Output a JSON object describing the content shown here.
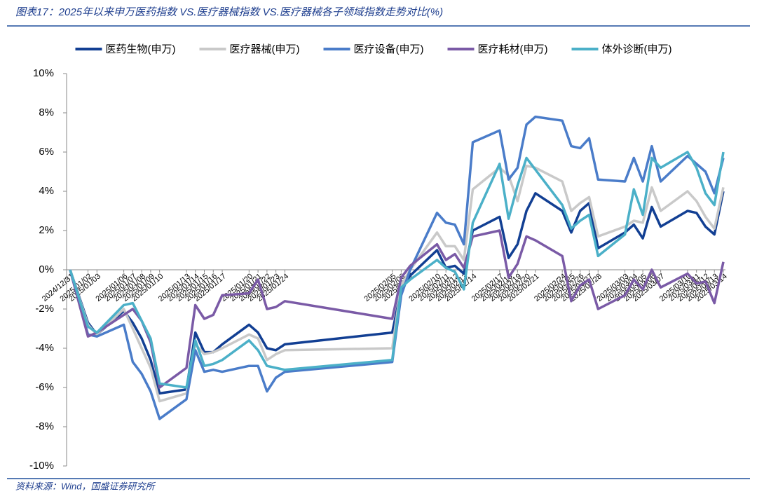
{
  "chart_data": {
    "type": "line",
    "title": "图表17：2025年以来申万医药指数 VS.医疗器械指数 VS.医疗器械各子领域指数走势对比(%)",
    "source": "资料来源：Wind，国盛证券研究所",
    "x": [
      "2024/12/31",
      "2025/01/02",
      "2025/01/03",
      "2025/01/06",
      "2025/01/07",
      "2025/01/08",
      "2025/01/09",
      "2025/01/10",
      "2025/01/13",
      "2025/01/14",
      "2025/01/15",
      "2025/01/16",
      "2025/01/17",
      "2025/01/20",
      "2025/01/21",
      "2025/01/22",
      "2025/01/23",
      "2025/01/24",
      "2025/02/05",
      "2025/02/06",
      "2025/02/07",
      "2025/02/10",
      "2025/02/11",
      "2025/02/12",
      "2025/02/13",
      "2025/02/14",
      "2025/02/17",
      "2025/02/18",
      "2025/02/19",
      "2025/02/20",
      "2025/02/21",
      "2025/02/24",
      "2025/02/25",
      "2025/02/26",
      "2025/02/27",
      "2025/02/28",
      "2025/03/03",
      "2025/03/04",
      "2025/03/05",
      "2025/03/06",
      "2025/03/07",
      "2025/03/10",
      "2025/03/11",
      "2025/03/12",
      "2025/03/13",
      "2025/03/14"
    ],
    "xlim": [
      "2024/12/31",
      "2025/03/14"
    ],
    "series": [
      {
        "name": "医药生物(申万)",
        "color": "#123f93",
        "values": [
          0,
          -2.7,
          -3.3,
          -2.1,
          -2.7,
          -3.5,
          -4.6,
          -6.3,
          -6.1,
          -3.2,
          -4.2,
          -4.2,
          -3.8,
          -2.8,
          -3.2,
          -4.0,
          -4.1,
          -3.8,
          -3.2,
          -1.0,
          -0.3,
          1.0,
          0.1,
          0.2,
          -0.2,
          2.0,
          2.7,
          0.6,
          1.3,
          3.0,
          3.9,
          3.0,
          1.9,
          3.0,
          3.4,
          1.1,
          1.9,
          2.3,
          1.6,
          3.2,
          2.2,
          3.0,
          2.9,
          2.2,
          1.8,
          4.0
        ]
      },
      {
        "name": "医疗器械(申万)",
        "color": "#c9c9c9",
        "values": [
          0,
          -2.8,
          -3.3,
          -2.0,
          -3.0,
          -4.0,
          -5.0,
          -6.7,
          -6.3,
          -3.8,
          -4.3,
          -4.2,
          -4.0,
          -3.3,
          -3.5,
          -4.6,
          -4.3,
          -4.1,
          -4.0,
          -0.8,
          0,
          1.9,
          1.2,
          1.2,
          0.5,
          4.1,
          5.2,
          4.8,
          3.5,
          5.3,
          5.2,
          4.5,
          3.0,
          3.4,
          3.7,
          1.7,
          2.2,
          2.5,
          2.4,
          4.2,
          3.0,
          4.0,
          3.5,
          2.7,
          2.1,
          4.2
        ]
      },
      {
        "name": "医疗设备(申万)",
        "color": "#4a7cc9",
        "values": [
          0,
          -3.3,
          -3.4,
          -2.8,
          -4.7,
          -5.3,
          -6.2,
          -7.6,
          -6.6,
          -4.1,
          -5.2,
          -5.1,
          -5.2,
          -4.9,
          -4.9,
          -6.2,
          -5.5,
          -5.2,
          -4.7,
          -1.3,
          0,
          2.9,
          2.4,
          2.3,
          1.3,
          6.5,
          7.1,
          4.6,
          5.2,
          7.4,
          7.8,
          7.6,
          6.3,
          6.2,
          6.7,
          4.6,
          4.5,
          5.7,
          4.5,
          6.3,
          4.5,
          5.8,
          5.4,
          5.0,
          3.9,
          5.7
        ]
      },
      {
        "name": "医疗耗材(申万)",
        "color": "#7a5aa6",
        "values": [
          0,
          -3.4,
          -3.2,
          -2.3,
          -2.0,
          -2.6,
          -3.7,
          -6.0,
          -5.0,
          -1.8,
          -2.5,
          -2.3,
          -1.3,
          -1.2,
          -0.5,
          -2.0,
          -1.9,
          -1.6,
          -2.5,
          -0.4,
          0.2,
          1.3,
          0.5,
          0.8,
          0.1,
          1.7,
          2.0,
          -0.4,
          0.3,
          1.7,
          1.5,
          0.7,
          -1.6,
          -0.8,
          -0.5,
          -2.0,
          -1.3,
          -0.5,
          -1.0,
          0,
          -0.9,
          -0.2,
          -0.7,
          -0.6,
          -1.7,
          0.4
        ]
      },
      {
        "name": "体外诊断(申万)",
        "color": "#4bb0c8",
        "values": [
          0,
          -2.9,
          -3.2,
          -1.8,
          -1.7,
          -2.6,
          -3.5,
          -5.8,
          -6.0,
          -3.6,
          -4.9,
          -4.8,
          -4.6,
          -3.6,
          -4.1,
          -4.9,
          -5.0,
          -5.1,
          -4.6,
          -0.9,
          -0.5,
          0.5,
          0.1,
          -0.1,
          -1.0,
          2.4,
          5.4,
          2.6,
          4.3,
          5.7,
          5.1,
          3.3,
          2.1,
          2.5,
          2.8,
          0.7,
          1.8,
          4.1,
          2.8,
          5.7,
          5.2,
          6.0,
          5.2,
          3.9,
          3.3,
          6.0
        ]
      }
    ],
    "ylim": [
      -10,
      10
    ],
    "yticks": [
      {
        "value": -10,
        "label": "-10%"
      },
      {
        "value": -8,
        "label": "-8%"
      },
      {
        "value": -6,
        "label": "-6%"
      },
      {
        "value": -4,
        "label": "-4%"
      },
      {
        "value": -2,
        "label": "-2%"
      },
      {
        "value": 0,
        "label": "0%"
      },
      {
        "value": 2,
        "label": "2%"
      },
      {
        "value": 4,
        "label": "4%"
      },
      {
        "value": 6,
        "label": "6%"
      },
      {
        "value": 8,
        "label": "8%"
      },
      {
        "value": 10,
        "label": "10%"
      }
    ],
    "grid": false,
    "legend": "top"
  }
}
